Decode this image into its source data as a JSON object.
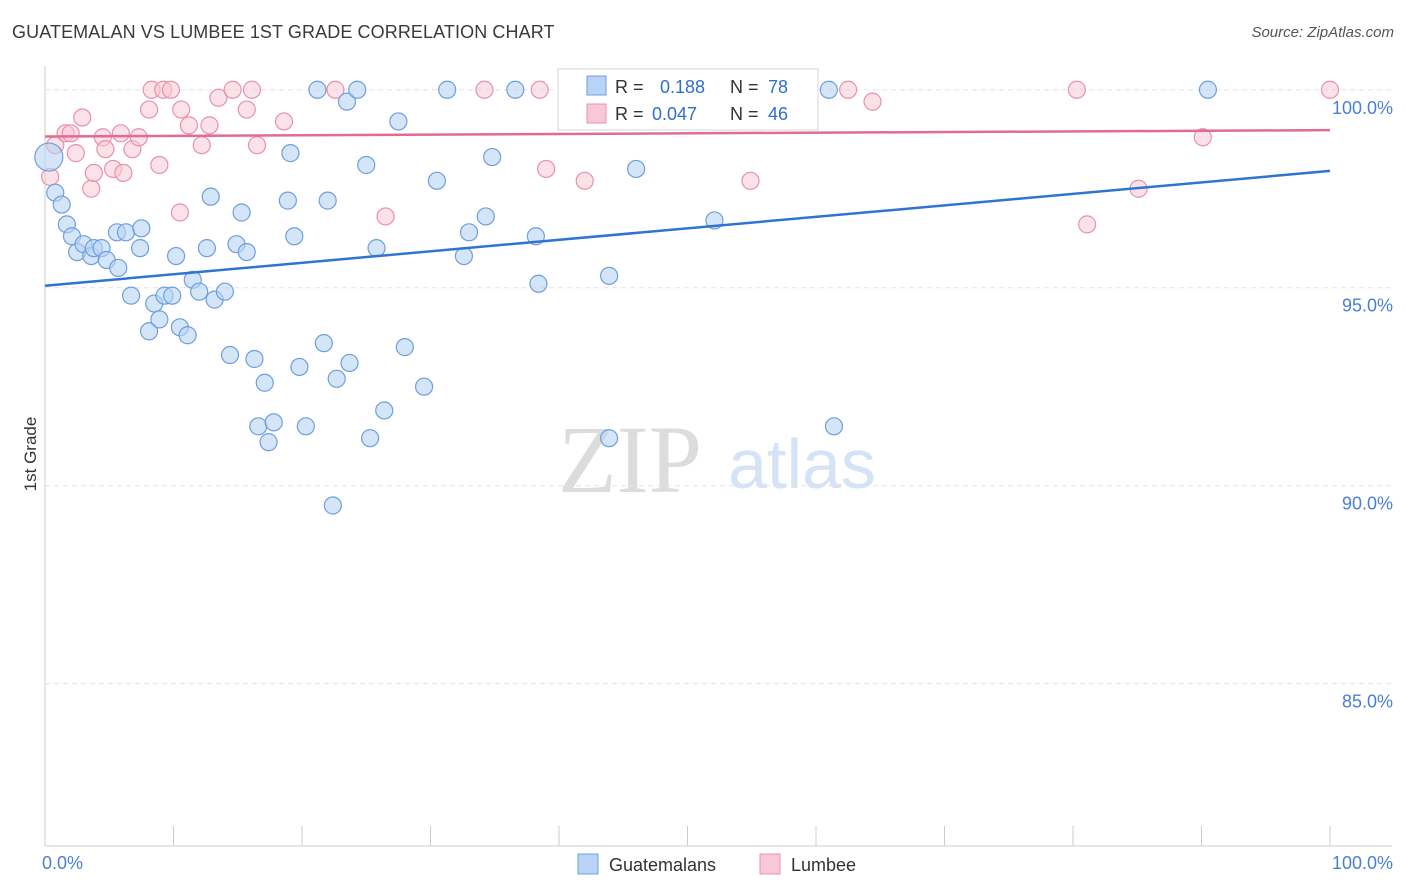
{
  "header": {
    "title": "GUATEMALAN VS LUMBEE 1ST GRADE CORRELATION CHART",
    "source": "Source: ZipAtlas.com"
  },
  "watermark": {
    "zip": "ZIP",
    "atlas": "atlas"
  },
  "colors": {
    "blue_fill": "#b8d3f3",
    "blue_stroke": "#6d9fdc",
    "blue_line": "#2f74d0",
    "pink_fill": "#f8c8d6",
    "pink_stroke": "#e891ab",
    "pink_line": "#e36a93",
    "tick_label": "#4a7fd4",
    "grid": "#e3e3e3"
  },
  "legend": {
    "rows": [
      {
        "r_label": "R = ",
        "r_value": "0.188",
        "n_label": "N = ",
        "n_value": "78"
      },
      {
        "r_label": "R = ",
        "r_value": "0.047",
        "n_label": "N = ",
        "n_value": "46"
      }
    ]
  },
  "chart_data": {
    "type": "scatter",
    "title": "GUATEMALAN VS LUMBEE 1ST GRADE CORRELATION CHART",
    "xlabel": "",
    "ylabel": "1st Grade",
    "xlim": [
      0,
      100
    ],
    "ylim": [
      80.9,
      100.6
    ],
    "x_tick_labels": [
      "0.0%",
      "100.0%"
    ],
    "y_ticks": [
      {
        "value": 100,
        "label": "100.0%"
      },
      {
        "value": 95,
        "label": "95.0%"
      },
      {
        "value": 90,
        "label": "90.0%"
      },
      {
        "value": 85,
        "label": "85.0%"
      }
    ],
    "legend_position": "bottom-center",
    "series": [
      {
        "name": "Guatemalans",
        "color": "blue",
        "R": 0.188,
        "N": 78,
        "trend": {
          "x": [
            0,
            100
          ],
          "y": [
            95.05,
            97.95
          ]
        },
        "points": [
          {
            "x": 0.3,
            "y": 98.3,
            "big": true
          },
          {
            "x": 0.8,
            "y": 97.4
          },
          {
            "x": 1.3,
            "y": 97.1
          },
          {
            "x": 1.7,
            "y": 96.6
          },
          {
            "x": 2.1,
            "y": 96.3
          },
          {
            "x": 2.5,
            "y": 95.9
          },
          {
            "x": 3.0,
            "y": 96.1
          },
          {
            "x": 3.6,
            "y": 95.8
          },
          {
            "x": 3.8,
            "y": 96.0
          },
          {
            "x": 4.4,
            "y": 96.0
          },
          {
            "x": 4.8,
            "y": 95.7
          },
          {
            "x": 5.6,
            "y": 96.4
          },
          {
            "x": 5.7,
            "y": 95.5
          },
          {
            "x": 6.3,
            "y": 96.4
          },
          {
            "x": 6.7,
            "y": 94.8
          },
          {
            "x": 7.4,
            "y": 96.0
          },
          {
            "x": 7.5,
            "y": 96.5
          },
          {
            "x": 8.1,
            "y": 93.9
          },
          {
            "x": 8.5,
            "y": 94.6
          },
          {
            "x": 8.9,
            "y": 94.2
          },
          {
            "x": 9.3,
            "y": 94.8
          },
          {
            "x": 9.9,
            "y": 94.8
          },
          {
            "x": 10.2,
            "y": 95.8
          },
          {
            "x": 10.5,
            "y": 94.0
          },
          {
            "x": 11.1,
            "y": 93.8
          },
          {
            "x": 11.5,
            "y": 95.2
          },
          {
            "x": 12.0,
            "y": 94.9
          },
          {
            "x": 12.6,
            "y": 96.0
          },
          {
            "x": 12.9,
            "y": 97.3
          },
          {
            "x": 13.2,
            "y": 94.7
          },
          {
            "x": 14.0,
            "y": 94.9
          },
          {
            "x": 14.4,
            "y": 93.3
          },
          {
            "x": 14.9,
            "y": 96.1
          },
          {
            "x": 15.3,
            "y": 96.9
          },
          {
            "x": 15.7,
            "y": 95.9
          },
          {
            "x": 16.3,
            "y": 93.2
          },
          {
            "x": 16.6,
            "y": 91.5
          },
          {
            "x": 17.1,
            "y": 92.6
          },
          {
            "x": 17.4,
            "y": 91.1
          },
          {
            "x": 17.8,
            "y": 91.6
          },
          {
            "x": 18.9,
            "y": 97.2
          },
          {
            "x": 19.1,
            "y": 98.4
          },
          {
            "x": 19.4,
            "y": 96.3
          },
          {
            "x": 19.8,
            "y": 93.0
          },
          {
            "x": 20.3,
            "y": 91.5
          },
          {
            "x": 21.2,
            "y": 100.0
          },
          {
            "x": 21.7,
            "y": 93.6
          },
          {
            "x": 22.0,
            "y": 97.2
          },
          {
            "x": 22.4,
            "y": 89.5
          },
          {
            "x": 22.7,
            "y": 92.7
          },
          {
            "x": 23.5,
            "y": 99.7
          },
          {
            "x": 23.7,
            "y": 93.1
          },
          {
            "x": 24.3,
            "y": 100.0
          },
          {
            "x": 25.0,
            "y": 98.1
          },
          {
            "x": 25.3,
            "y": 91.2
          },
          {
            "x": 25.8,
            "y": 96.0
          },
          {
            "x": 26.4,
            "y": 91.9
          },
          {
            "x": 27.5,
            "y": 99.2
          },
          {
            "x": 28.0,
            "y": 93.5
          },
          {
            "x": 29.5,
            "y": 92.5
          },
          {
            "x": 30.5,
            "y": 97.7
          },
          {
            "x": 31.3,
            "y": 100.0
          },
          {
            "x": 32.6,
            "y": 95.8
          },
          {
            "x": 33.0,
            "y": 96.4
          },
          {
            "x": 34.3,
            "y": 96.8
          },
          {
            "x": 34.8,
            "y": 98.3
          },
          {
            "x": 36.6,
            "y": 100.0
          },
          {
            "x": 38.2,
            "y": 96.3
          },
          {
            "x": 38.4,
            "y": 95.1
          },
          {
            "x": 43.9,
            "y": 91.2
          },
          {
            "x": 43.9,
            "y": 95.3
          },
          {
            "x": 46.0,
            "y": 98.0
          },
          {
            "x": 49.0,
            "y": 100.0
          },
          {
            "x": 52.1,
            "y": 96.7
          },
          {
            "x": 58.2,
            "y": 100.0
          },
          {
            "x": 61.0,
            "y": 100.0
          },
          {
            "x": 61.4,
            "y": 91.5
          },
          {
            "x": 90.5,
            "y": 100.0
          }
        ]
      },
      {
        "name": "Lumbee",
        "color": "pink",
        "R": 0.047,
        "N": 46,
        "trend": {
          "x": [
            0,
            100
          ],
          "y": [
            98.82,
            98.98
          ]
        },
        "points": [
          {
            "x": 0.4,
            "y": 97.8
          },
          {
            "x": 0.8,
            "y": 98.6
          },
          {
            "x": 1.6,
            "y": 98.9
          },
          {
            "x": 2.0,
            "y": 98.9
          },
          {
            "x": 2.4,
            "y": 98.4
          },
          {
            "x": 2.9,
            "y": 99.3
          },
          {
            "x": 3.6,
            "y": 97.5
          },
          {
            "x": 3.8,
            "y": 97.9
          },
          {
            "x": 4.5,
            "y": 98.8
          },
          {
            "x": 4.7,
            "y": 98.5
          },
          {
            "x": 5.3,
            "y": 98.0
          },
          {
            "x": 5.9,
            "y": 98.9
          },
          {
            "x": 6.1,
            "y": 97.9
          },
          {
            "x": 6.8,
            "y": 98.5
          },
          {
            "x": 7.3,
            "y": 98.8
          },
          {
            "x": 8.1,
            "y": 99.5
          },
          {
            "x": 8.3,
            "y": 100.0
          },
          {
            "x": 8.9,
            "y": 98.1
          },
          {
            "x": 9.2,
            "y": 100.0
          },
          {
            "x": 9.8,
            "y": 100.0
          },
          {
            "x": 10.5,
            "y": 96.9
          },
          {
            "x": 10.6,
            "y": 99.5
          },
          {
            "x": 11.2,
            "y": 99.1
          },
          {
            "x": 12.2,
            "y": 98.6
          },
          {
            "x": 12.8,
            "y": 99.1
          },
          {
            "x": 13.5,
            "y": 99.8
          },
          {
            "x": 14.6,
            "y": 100.0
          },
          {
            "x": 15.7,
            "y": 99.5
          },
          {
            "x": 16.1,
            "y": 100.0
          },
          {
            "x": 16.5,
            "y": 98.6
          },
          {
            "x": 18.6,
            "y": 99.2
          },
          {
            "x": 22.6,
            "y": 100.0
          },
          {
            "x": 26.5,
            "y": 96.8
          },
          {
            "x": 34.2,
            "y": 100.0
          },
          {
            "x": 38.5,
            "y": 100.0
          },
          {
            "x": 39.0,
            "y": 98.0
          },
          {
            "x": 42.0,
            "y": 97.7
          },
          {
            "x": 50.0,
            "y": 100.0
          },
          {
            "x": 54.9,
            "y": 97.7
          },
          {
            "x": 62.5,
            "y": 100.0
          },
          {
            "x": 64.4,
            "y": 99.7
          },
          {
            "x": 80.3,
            "y": 100.0
          },
          {
            "x": 81.1,
            "y": 96.6
          },
          {
            "x": 85.1,
            "y": 97.5
          },
          {
            "x": 100.0,
            "y": 100.0
          },
          {
            "x": 90.1,
            "y": 98.8
          }
        ]
      }
    ]
  }
}
